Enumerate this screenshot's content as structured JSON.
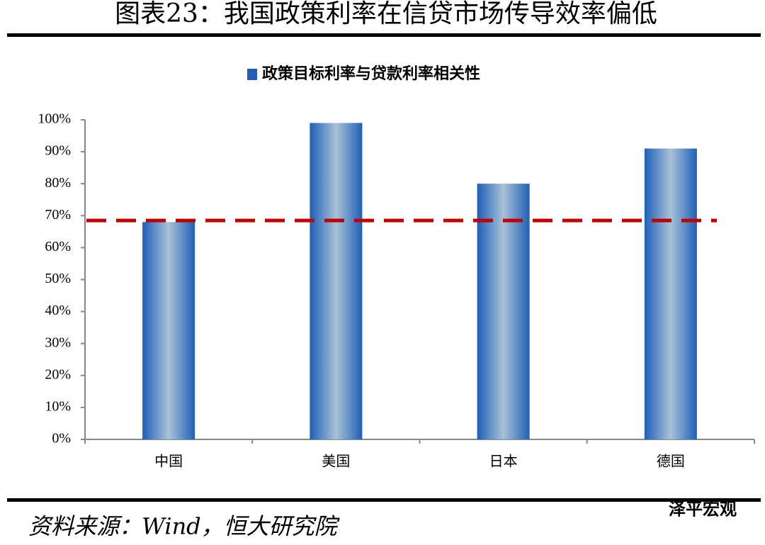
{
  "header": {
    "title": "图表23：我国政策利率在信贷市场传导效率偏低"
  },
  "chart_data": {
    "type": "bar",
    "categories": [
      "中国",
      "美国",
      "日本",
      "德国"
    ],
    "series": [
      {
        "name": "政策目标利率与贷款利率相关性",
        "color": "#1f5fb8",
        "values": [
          68,
          99,
          80,
          91
        ]
      }
    ],
    "ylim": [
      0,
      100
    ],
    "yticks": [
      {
        "value": 0,
        "label": "0%"
      },
      {
        "value": 10,
        "label": "10%"
      },
      {
        "value": 20,
        "label": "20%"
      },
      {
        "value": 30,
        "label": "30%"
      },
      {
        "value": 40,
        "label": "40%"
      },
      {
        "value": 50,
        "label": "50%"
      },
      {
        "value": 60,
        "label": "60%"
      },
      {
        "value": 70,
        "label": "70%"
      },
      {
        "value": 80,
        "label": "80%"
      },
      {
        "value": 90,
        "label": "90%"
      },
      {
        "value": 100,
        "label": "100%"
      }
    ],
    "reference_line": {
      "value": 68.5,
      "color": "#c00000"
    },
    "legend": "top"
  },
  "footer": {
    "source": "资料来源：Wind，恒大研究院",
    "watermark": "泽平宏观"
  }
}
